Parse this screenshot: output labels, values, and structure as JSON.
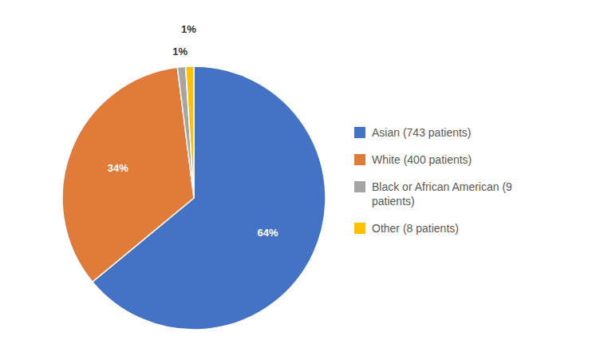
{
  "chart_data": {
    "type": "pie",
    "categories": [
      "Asian (743 patients)",
      "White (400 patients)",
      "Black or African American (9\n patients)",
      "Other (8 patients)"
    ],
    "values": [
      64,
      34,
      1,
      1
    ],
    "value_labels": [
      "64%",
      "34%",
      "1%",
      "1%"
    ],
    "colors": [
      "#4472C4",
      "#E07B39",
      "#A5A5A5",
      "#FFC000"
    ],
    "data_labels": true,
    "legend": "right"
  }
}
